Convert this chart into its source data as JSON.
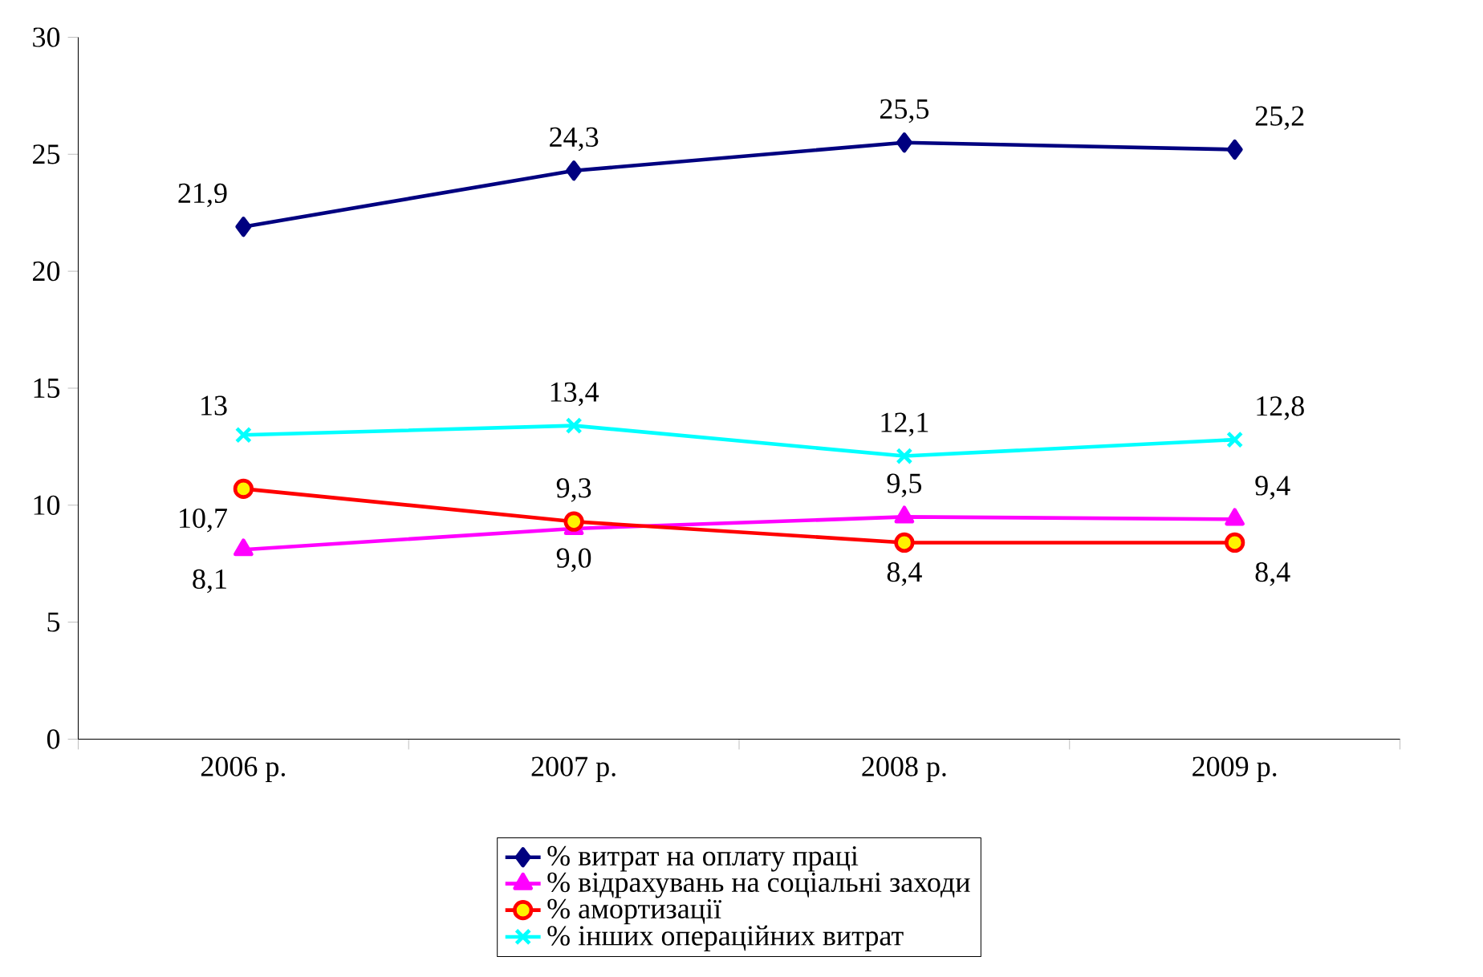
{
  "chart_data": {
    "type": "line",
    "categories": [
      "2006 р.",
      "2007 р.",
      "2008 р.",
      "2009 р."
    ],
    "series": [
      {
        "name": "% витрат на оплату праці",
        "color": "#000080",
        "marker": "diamond",
        "values": [
          21.9,
          24.3,
          25.5,
          25.2
        ],
        "value_labels": [
          "21,9",
          "24,3",
          "25,5",
          "25,2"
        ]
      },
      {
        "name": "% відрахувань на соціальні заходи",
        "color": "#ff00ff",
        "marker": "triangle",
        "values": [
          8.1,
          9.0,
          9.5,
          9.4
        ],
        "value_labels": [
          "8,1",
          "9,0",
          "9,5",
          "9,4"
        ]
      },
      {
        "name": "% амортизації",
        "color": "#ff0000",
        "marker": "circle",
        "values": [
          10.7,
          9.3,
          8.4,
          8.4
        ],
        "value_labels": [
          "10,7",
          "9,3",
          "8,4",
          "8,4"
        ]
      },
      {
        "name": "% інших операційних витрат",
        "color": "#00ffff",
        "marker": "cross",
        "values": [
          13,
          13.4,
          12.1,
          12.8
        ],
        "value_labels": [
          "13",
          "13,4",
          "12,1",
          "12,8"
        ]
      }
    ],
    "ylim": [
      0,
      30
    ],
    "yticks": [
      0,
      5,
      10,
      15,
      20,
      25,
      30
    ],
    "grid": false,
    "legend": "bottom",
    "line_style": "solid"
  }
}
